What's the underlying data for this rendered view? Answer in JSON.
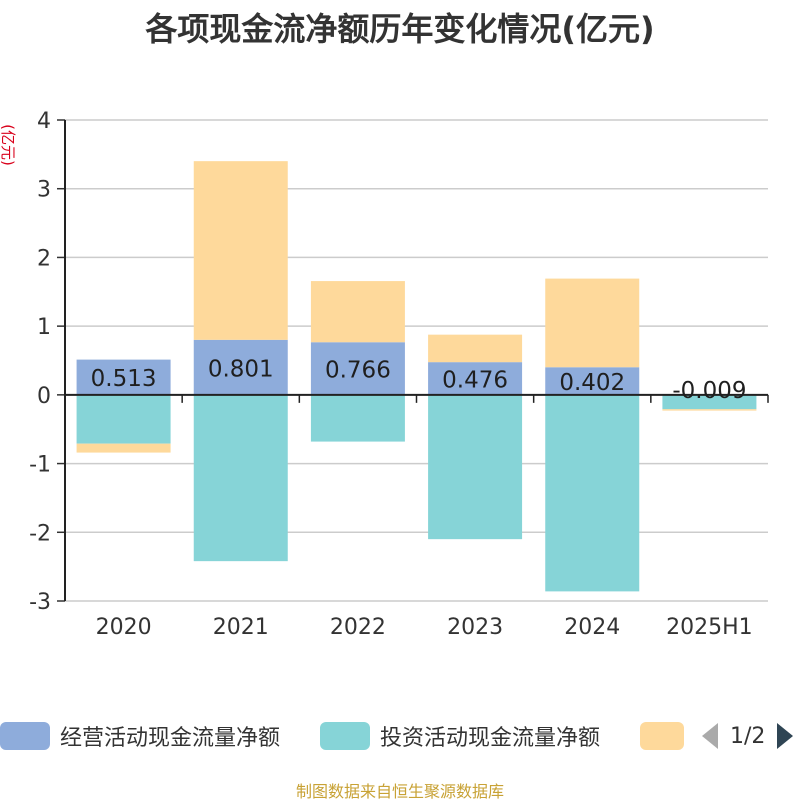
{
  "title": "各项现金流净额历年变化情况(亿元)",
  "source": "制图数据来自恒生聚源数据库",
  "colors": {
    "operating": "#8eacdb",
    "investing": "#86d4d7",
    "financing": "#fed99b",
    "label_text": "#1f1f1f"
  },
  "legend": {
    "items": [
      {
        "label": "经营活动现金流量净额",
        "color": "#8eacdb"
      },
      {
        "label": "投资活动现金流量净额",
        "color": "#86d4d7"
      },
      {
        "label": "",
        "color": "#fed99b"
      }
    ],
    "page": "1/2"
  },
  "chart_data": {
    "type": "bar",
    "stacked": true,
    "categories": [
      "2020",
      "2021",
      "2022",
      "2023",
      "2024",
      "2025H1"
    ],
    "ylabel": "(亿元)",
    "ylim": [
      -3,
      4
    ],
    "yticks": [
      4,
      3,
      2,
      1,
      0,
      -1,
      -2,
      -3
    ],
    "grid": true,
    "series": [
      {
        "name": "经营活动现金流量净额",
        "values": [
          0.513,
          0.801,
          0.766,
          0.476,
          0.402,
          -0.009
        ],
        "labels": [
          "0.513",
          "0.801",
          "0.766",
          "0.476",
          "0.402",
          "-0.009"
        ]
      },
      {
        "name": "投资活动现金流量净额",
        "values": [
          -0.71,
          -2.42,
          -0.68,
          -2.1,
          -2.86,
          -0.2
        ]
      },
      {
        "values": [
          -0.13,
          2.6,
          0.89,
          0.4,
          1.29,
          -0.02
        ]
      }
    ]
  }
}
